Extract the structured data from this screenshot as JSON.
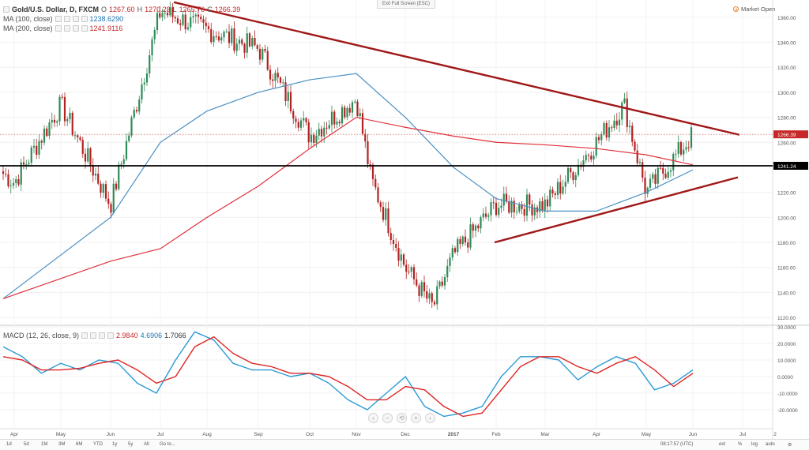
{
  "window": {
    "exit_fullscreen": "Exit Full Screen (ESC)"
  },
  "legend": {
    "symbol": "Gold/U.S. Dollar, D, FXCM",
    "ohlc": {
      "o_label": "O",
      "o": "1267.60",
      "h_label": "H",
      "h": "1270.23",
      "l_label": "L",
      "l": "1265.76",
      "c_label": "C",
      "c": "1266.39"
    },
    "ma100": {
      "label": "MA (100, close)",
      "value": "1238.6290"
    },
    "ma200": {
      "label": "MA (200, close)",
      "value": "1241.9116"
    },
    "macd": {
      "label": "MACD (12, 26, close, 9)",
      "v1": "2.9840",
      "v2": "4.6906",
      "v3": "1.7066"
    }
  },
  "market_status": "Market Open",
  "price_axis": {
    "ticks": [
      "1360.00",
      "1340.00",
      "1320.00",
      "1300.00",
      "1280.00",
      "1260.00",
      "1220.00",
      "1200.00",
      "1180.00",
      "1160.00",
      "1140.00",
      "1120.00"
    ],
    "last_price_label": "1266.39",
    "horizontal_line_label": "1241.24"
  },
  "macd_axis": {
    "ticks": [
      "30.0000",
      "20.0000",
      "10.0000",
      "0.0000",
      "-10.0000",
      "-20.0000"
    ]
  },
  "time_axis": {
    "labels": [
      "Apr",
      "May",
      "Jun",
      "Jul",
      "Aug",
      "Sep",
      "Oct",
      "Nov",
      "Dec",
      "2017",
      "Feb",
      "Mar",
      "Apr",
      "May",
      "Jun",
      "Jul",
      "2"
    ]
  },
  "bottom_bar": {
    "timeframes": [
      "1d",
      "5d",
      "1M",
      "3M",
      "6M",
      "YTD",
      "1y",
      "5y",
      "All"
    ],
    "goto": "Go to...",
    "clock": "08:17:57 (UTC)",
    "right_buttons": [
      "ext",
      "%",
      "log",
      "auto"
    ]
  },
  "colors": {
    "up_candle": "#2e8b57",
    "down_candle": "#b22222",
    "ma100": "#4a90c2",
    "ma200": "#e0303a",
    "trendline": "#a01818",
    "hline": "#000000",
    "macd_line": "#2a9ad6",
    "signal_line": "#e02424"
  },
  "chart_data": {
    "type": "candlestick",
    "symbol": "Gold/U.S. Dollar",
    "interval": "D",
    "ylim": [
      1115,
      1370
    ],
    "x_labels": [
      "Apr",
      "May",
      "Jun",
      "Jul",
      "Aug",
      "Sep",
      "Oct",
      "Nov",
      "Dec",
      "2017",
      "Feb",
      "Mar",
      "Apr",
      "May",
      "Jun",
      "Jul",
      "2"
    ],
    "price_path_anchors": [
      [
        "start",
        1235
      ],
      [
        "Apr",
        1228
      ],
      [
        "May",
        1290
      ],
      [
        "Jun",
        1210
      ],
      [
        "Jul",
        1365
      ],
      [
        "Aug",
        1350
      ],
      [
        "Sep",
        1335
      ],
      [
        "Oct",
        1265
      ],
      [
        "Nov",
        1295
      ],
      [
        "mid-Nov",
        1230
      ],
      [
        "Dec",
        1160
      ],
      [
        "late-Dec",
        1128
      ],
      [
        "2017",
        1170
      ],
      [
        "Feb",
        1210
      ],
      [
        "Mar",
        1210
      ],
      [
        "Apr",
        1260
      ],
      [
        "mid-Apr",
        1290
      ],
      [
        "May",
        1220
      ],
      [
        "Jun",
        1266
      ]
    ],
    "ma100_anchors": [
      [
        "start",
        1135
      ],
      [
        "Jun",
        1200
      ],
      [
        "Jul",
        1260
      ],
      [
        "Aug",
        1285
      ],
      [
        "Sep",
        1300
      ],
      [
        "Oct",
        1310
      ],
      [
        "Nov",
        1315
      ],
      [
        "Dec",
        1280
      ],
      [
        "2017",
        1240
      ],
      [
        "Feb",
        1215
      ],
      [
        "Mar",
        1205
      ],
      [
        "Apr",
        1205
      ],
      [
        "May",
        1220
      ],
      [
        "Jun",
        1238
      ]
    ],
    "ma200_anchors": [
      [
        "start",
        1135
      ],
      [
        "Jun",
        1165
      ],
      [
        "Jul",
        1175
      ],
      [
        "Aug",
        1200
      ],
      [
        "Sep",
        1225
      ],
      [
        "Oct",
        1255
      ],
      [
        "Nov",
        1280
      ],
      [
        "Dec",
        1272
      ],
      [
        "2017",
        1265
      ],
      [
        "Feb",
        1260
      ],
      [
        "Mar",
        1258
      ],
      [
        "Apr",
        1255
      ],
      [
        "May",
        1250
      ],
      [
        "Jun",
        1242
      ]
    ],
    "trendlines": [
      {
        "name": "descending",
        "from": [
          "Jul",
          1372
        ],
        "to": [
          "Jul",
          1265
        ]
      },
      {
        "name": "ascending",
        "from": [
          "Feb",
          1180
        ],
        "to": [
          "Jul",
          1232
        ]
      }
    ],
    "hline": 1241.24,
    "macd": {
      "ylim": [
        -30,
        30
      ],
      "macd_anchors": [
        [
          0,
          18
        ],
        [
          1,
          12
        ],
        [
          2,
          2
        ],
        [
          3,
          8
        ],
        [
          4,
          4
        ],
        [
          5,
          10
        ],
        [
          6,
          8
        ],
        [
          7,
          -4
        ],
        [
          8,
          -10
        ],
        [
          9,
          10
        ],
        [
          10,
          27
        ],
        [
          11,
          22
        ],
        [
          12,
          8
        ],
        [
          13,
          4
        ],
        [
          14,
          4
        ],
        [
          15,
          0
        ],
        [
          16,
          2
        ],
        [
          17,
          -4
        ],
        [
          18,
          -14
        ],
        [
          19,
          -20
        ],
        [
          20,
          -10
        ],
        [
          21,
          0
        ],
        [
          22,
          -18
        ],
        [
          23,
          -24
        ],
        [
          24,
          -22
        ],
        [
          25,
          -18
        ],
        [
          26,
          0
        ],
        [
          27,
          12
        ],
        [
          28,
          12
        ],
        [
          29,
          10
        ],
        [
          30,
          -2
        ],
        [
          31,
          6
        ],
        [
          32,
          12
        ],
        [
          33,
          8
        ],
        [
          34,
          -8
        ],
        [
          35,
          -4
        ],
        [
          36,
          4
        ]
      ],
      "signal_anchors": [
        [
          0,
          12
        ],
        [
          1,
          10
        ],
        [
          2,
          4
        ],
        [
          3,
          4
        ],
        [
          4,
          5
        ],
        [
          5,
          8
        ],
        [
          6,
          10
        ],
        [
          7,
          4
        ],
        [
          8,
          -4
        ],
        [
          9,
          0
        ],
        [
          10,
          18
        ],
        [
          11,
          24
        ],
        [
          12,
          14
        ],
        [
          13,
          8
        ],
        [
          14,
          6
        ],
        [
          15,
          2
        ],
        [
          16,
          2
        ],
        [
          17,
          0
        ],
        [
          18,
          -6
        ],
        [
          19,
          -14
        ],
        [
          20,
          -14
        ],
        [
          21,
          -6
        ],
        [
          22,
          -8
        ],
        [
          23,
          -18
        ],
        [
          24,
          -24
        ],
        [
          25,
          -22
        ],
        [
          26,
          -8
        ],
        [
          27,
          6
        ],
        [
          28,
          12
        ],
        [
          29,
          12
        ],
        [
          30,
          6
        ],
        [
          31,
          2
        ],
        [
          32,
          8
        ],
        [
          33,
          12
        ],
        [
          34,
          4
        ],
        [
          35,
          -6
        ],
        [
          36,
          2
        ]
      ]
    }
  }
}
